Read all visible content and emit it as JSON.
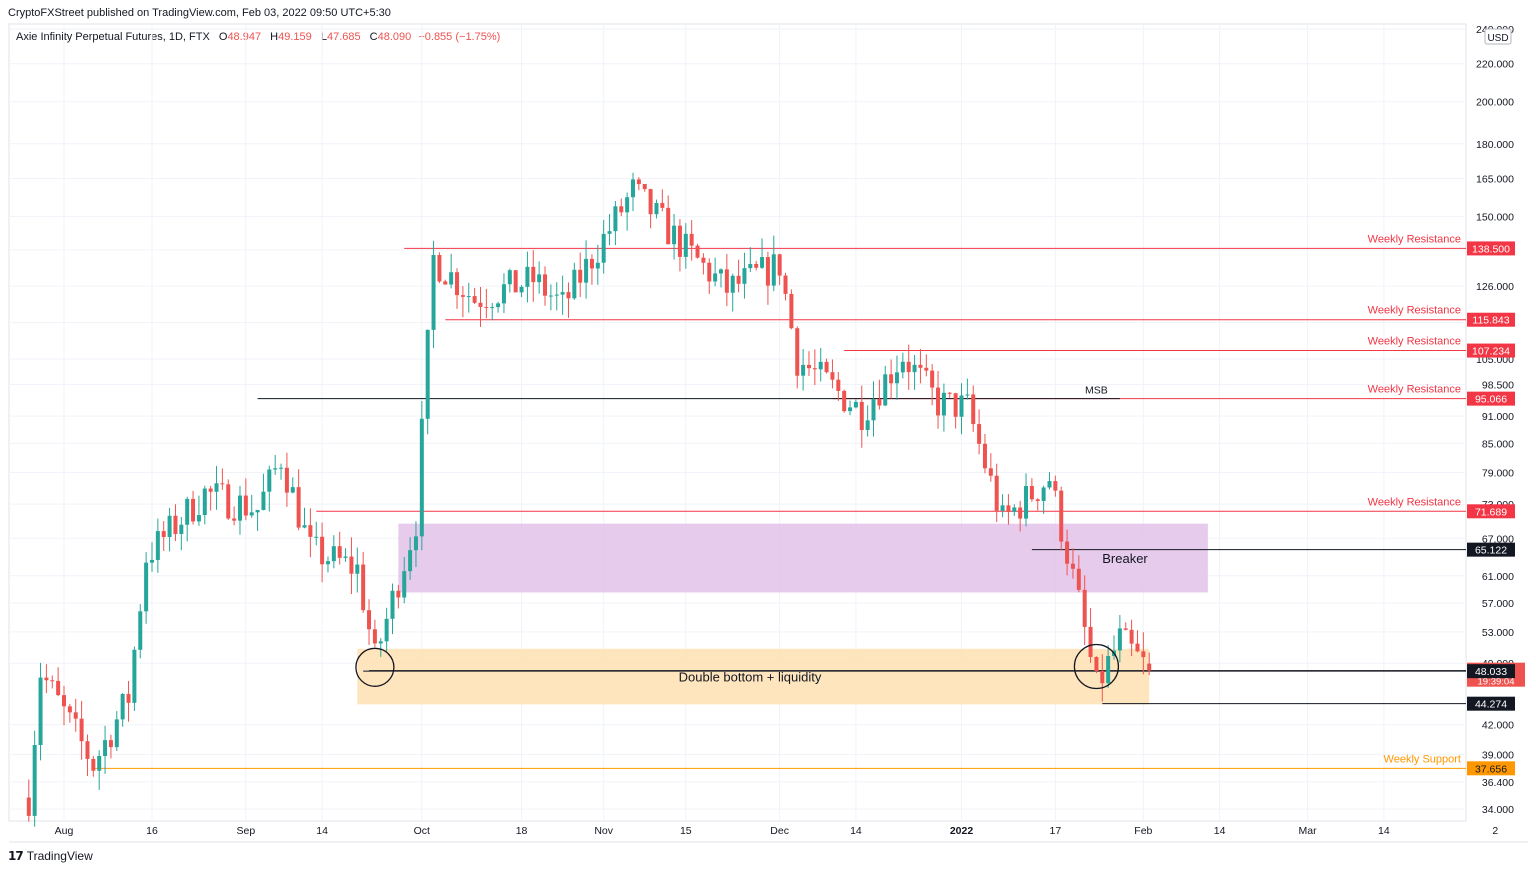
{
  "header": {
    "publisher": "CryptoFXStreet published on TradingView.com, Feb 03, 2022 09:50 UTC+5:30",
    "symbol": "Axie Infinity Perpetual Futures, 1D, FTX",
    "open_label": "O",
    "open": "48.947",
    "high_label": "H",
    "high": "49.159",
    "low_label": "L",
    "low": "47.685",
    "close_label": "C",
    "close": "48.090",
    "change": "−0.855 (−1.75%)"
  },
  "footer": {
    "brand": "TradingView"
  },
  "colors": {
    "up": "#26a69a",
    "down": "#ef5350",
    "resistance": "#f23645",
    "support": "#ff9800",
    "breaker_zone": "#e1bee7",
    "double_bottom_zone": "#ffe0b2",
    "grid": "#f0f3fa",
    "axis_text": "#131722"
  },
  "chart_data": {
    "type": "candlestick",
    "title": "Axie Infinity Perpetual Futures, 1D, FTX",
    "y_scale": "log",
    "ylim": [
      33.5,
      243
    ],
    "currency": "USD",
    "x_tick_labels": [
      {
        "label": "Aug",
        "date": "2021-08-01"
      },
      {
        "label": "16",
        "date": "2021-08-16"
      },
      {
        "label": "Sep",
        "date": "2021-09-01"
      },
      {
        "label": "14",
        "date": "2021-09-14"
      },
      {
        "label": "Oct",
        "date": "2021-10-01"
      },
      {
        "label": "18",
        "date": "2021-10-18"
      },
      {
        "label": "Nov",
        "date": "2021-11-01"
      },
      {
        "label": "15",
        "date": "2021-11-15"
      },
      {
        "label": "Dec",
        "date": "2021-12-01"
      },
      {
        "label": "14",
        "date": "2021-12-14"
      },
      {
        "label": "2022",
        "date": "2022-01-01",
        "bold": true
      },
      {
        "label": "17",
        "date": "2022-01-17"
      },
      {
        "label": "Feb",
        "date": "2022-02-01"
      },
      {
        "label": "14",
        "date": "2022-02-14"
      },
      {
        "label": "Mar",
        "date": "2022-03-01"
      },
      {
        "label": "14",
        "date": "2022-03-14"
      },
      {
        "label": "2",
        "date": "2022-04-02"
      }
    ],
    "y_tick_labels": [
      "240.000",
      "220.000",
      "200.000",
      "180.000",
      "165.000",
      "150.000",
      "138.000",
      "126.000",
      "115.000",
      "105.000",
      "98.500",
      "91.000",
      "85.000",
      "79.000",
      "73.000",
      "67.000",
      "61.000",
      "57.000",
      "53.000",
      "49.000",
      "42.000",
      "39.000",
      "36.400",
      "34.000"
    ],
    "key_points": [
      {
        "date": "2021-07-26",
        "close": 35.0
      },
      {
        "date": "2021-07-28",
        "close": 48.0
      },
      {
        "date": "2021-08-06",
        "close": 38.0
      },
      {
        "date": "2021-08-12",
        "close": 45.0
      },
      {
        "date": "2021-08-15",
        "close": 64.0
      },
      {
        "date": "2021-08-25",
        "close": 75.0
      },
      {
        "date": "2021-09-03",
        "close": 72.0
      },
      {
        "date": "2021-09-07",
        "close": 82.0
      },
      {
        "date": "2021-09-12",
        "close": 65.0
      },
      {
        "date": "2021-09-20",
        "close": 62.0
      },
      {
        "date": "2021-09-23",
        "close": 49.5
      },
      {
        "date": "2021-09-30",
        "close": 70.0
      },
      {
        "date": "2021-10-03",
        "close": 135.0
      },
      {
        "date": "2021-10-10",
        "close": 122.0
      },
      {
        "date": "2021-10-20",
        "close": 128.0
      },
      {
        "date": "2021-10-25",
        "close": 120.0
      },
      {
        "date": "2021-11-06",
        "close": 160.0
      },
      {
        "date": "2021-11-15",
        "close": 138.0
      },
      {
        "date": "2021-11-22",
        "close": 125.0
      },
      {
        "date": "2021-12-01",
        "close": 133.0
      },
      {
        "date": "2021-12-04",
        "close": 105.0
      },
      {
        "date": "2021-12-15",
        "close": 92.0
      },
      {
        "date": "2021-12-22",
        "close": 106.0
      },
      {
        "date": "2021-12-28",
        "close": 94.0
      },
      {
        "date": "2022-01-02",
        "close": 93.0
      },
      {
        "date": "2022-01-08",
        "close": 70.0
      },
      {
        "date": "2022-01-16",
        "close": 78.0
      },
      {
        "date": "2022-01-21",
        "close": 57.0
      },
      {
        "date": "2022-01-24",
        "close": 46.0
      },
      {
        "date": "2022-01-28",
        "close": 52.0
      },
      {
        "date": "2022-02-02",
        "close": 48.09
      }
    ],
    "last_price": 48.09,
    "horizontal_levels": [
      {
        "label": "Weekly Resistance",
        "value": "138.500",
        "kind": "resistance"
      },
      {
        "label": "Weekly Resistance",
        "value": "115.843",
        "kind": "resistance"
      },
      {
        "label": "Weekly Resistance",
        "value": "107.234",
        "kind": "resistance"
      },
      {
        "label": "Weekly Resistance",
        "value": "95.066",
        "kind": "resistance"
      },
      {
        "label": "Weekly Resistance",
        "value": "71.689",
        "kind": "resistance"
      },
      {
        "label": "Weekly Support",
        "value": "37.656",
        "kind": "support"
      }
    ],
    "price_tags": [
      {
        "value": "65.122",
        "kind": "black"
      },
      {
        "value": "48.090",
        "kind": "last",
        "countdown": "19:39:04"
      },
      {
        "value": "48.033",
        "kind": "black"
      },
      {
        "value": "44.274",
        "kind": "black"
      }
    ],
    "annotations": [
      {
        "text": "MSB",
        "value": 95.066
      },
      {
        "text": "Breaker",
        "zone": [
          58.5,
          69.5
        ]
      },
      {
        "text": "Double bottom + liquidity",
        "zone": [
          44.2,
          50.8
        ]
      }
    ]
  }
}
